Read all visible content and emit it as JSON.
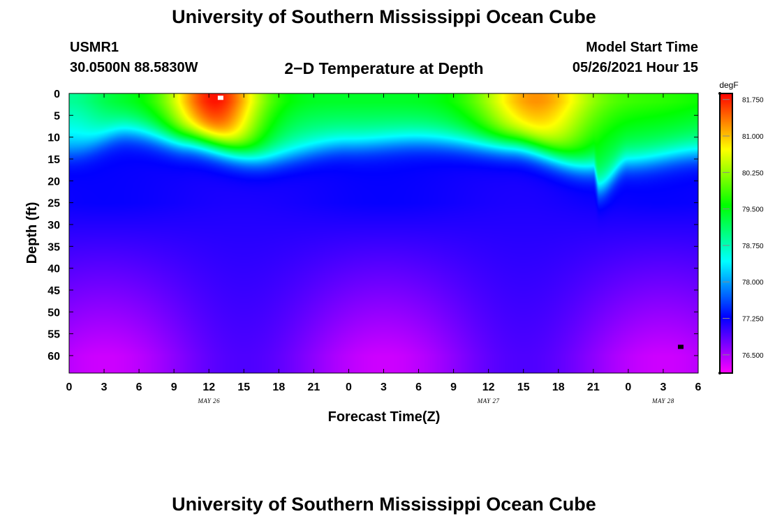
{
  "header": {
    "title": "University of Southern Mississippi Ocean Cube",
    "footer_title": "University of Southern Mississippi Ocean Cube",
    "station_id": "USMR1",
    "station_coords": "30.0500N  88.5830W",
    "plot_title": "2−D Temperature at Depth",
    "model_start_label": "Model Start Time",
    "model_start_value": "05/26/2021 Hour 15"
  },
  "chart_data": {
    "type": "heatmap",
    "title": "2-D Temperature at Depth",
    "xlabel": "Forecast Time(Z)",
    "ylabel": "Depth (ft)",
    "x_ticks": [
      "0",
      "3",
      "6",
      "9",
      "12",
      "15",
      "18",
      "21",
      "0",
      "3",
      "6",
      "9",
      "12",
      "15",
      "18",
      "21",
      "0",
      "3",
      "6"
    ],
    "x_range_hours": [
      0,
      54
    ],
    "date_labels": [
      {
        "text": "MAY 26",
        "hour": 12
      },
      {
        "text": "MAY 27",
        "hour": 36
      },
      {
        "text": "MAY 28",
        "hour": 51
      }
    ],
    "y_ticks": [
      0,
      5,
      10,
      15,
      20,
      25,
      30,
      35,
      40,
      45,
      50,
      55,
      60
    ],
    "y_range_ft": [
      0,
      64
    ],
    "colorbar": {
      "unit": "degF",
      "min": 76.125,
      "max": 81.875,
      "tick_values": [
        76.5,
        77.25,
        78.0,
        78.75,
        79.5,
        80.25,
        81.0,
        81.75
      ],
      "tick_labels": [
        "76.500",
        "77.250",
        "78.000",
        "78.750",
        "79.500",
        "80.250",
        "81.000",
        "81.750"
      ],
      "colors": [
        "#ff00ff",
        "#8000ff",
        "#0000ff",
        "#0080ff",
        "#00ffff",
        "#00ff80",
        "#00ff00",
        "#80ff00",
        "#ffff00",
        "#ff8000",
        "#ff0000"
      ]
    },
    "field_description": {
      "surface_max_degF": 81.875,
      "deep_min_degF": 76.2,
      "warm_cores": [
        {
          "hour": 12.5,
          "depth_ft": 1,
          "temp_degF": 81.8
        },
        {
          "hour": 40,
          "depth_ft": 4,
          "temp_degF": 81.2
        }
      ],
      "thermocline_depth_ft_by_hour": [
        {
          "hour": 0,
          "depth_ft": 14
        },
        {
          "hour": 5,
          "depth_ft": 9
        },
        {
          "hour": 10,
          "depth_ft": 11
        },
        {
          "hour": 17,
          "depth_ft": 15
        },
        {
          "hour": 24,
          "depth_ft": 12
        },
        {
          "hour": 30,
          "depth_ft": 11
        },
        {
          "hour": 38,
          "depth_ft": 12
        },
        {
          "hour": 45,
          "depth_ft": 17
        },
        {
          "hour": 45.5,
          "depth_ft": 22
        },
        {
          "hour": 48,
          "depth_ft": 16
        },
        {
          "hour": 54,
          "depth_ft": 14
        }
      ]
    },
    "markers": [
      {
        "hour": 13,
        "depth_ft": 1,
        "color": "#ffffff"
      },
      {
        "hour": 52.5,
        "depth_ft": 58,
        "color": "#000000"
      }
    ]
  }
}
